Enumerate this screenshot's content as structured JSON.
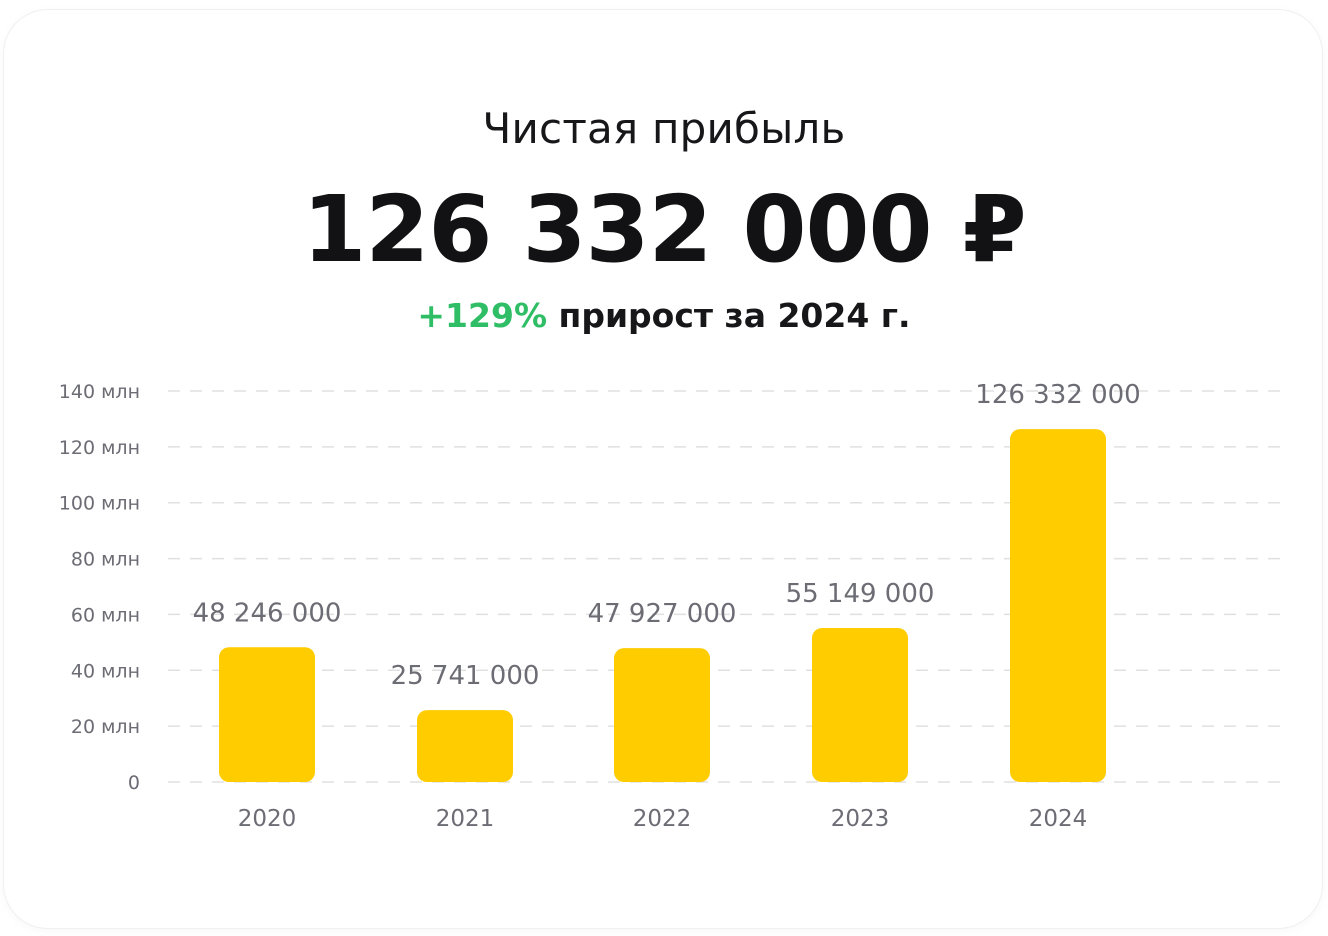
{
  "header": {
    "title": "Чистая прибыль",
    "amount": "126 332 000 ₽",
    "growth_pct": "+129%",
    "growth_text": "прирост за 2024 г."
  },
  "colors": {
    "bar": "#FFCC00",
    "growth": "#2FBE66",
    "grid": "#E0E0E0",
    "text": "#6C6C74"
  },
  "chart_data": {
    "type": "bar",
    "categories": [
      "2020",
      "2021",
      "2022",
      "2023",
      "2024"
    ],
    "values": [
      48246000,
      25741000,
      47927000,
      55149000,
      126332000
    ],
    "value_labels": [
      "48 246 000",
      "25 741 000",
      "47 927 000",
      "55 149 000",
      "126 332 000"
    ],
    "y_ticks": [
      "0",
      "20 млн",
      "40 млн",
      "60 млн",
      "80 млн",
      "100 млн",
      "120 млн",
      "140 млн"
    ],
    "ylim": [
      0,
      140000000
    ],
    "grid": true
  }
}
